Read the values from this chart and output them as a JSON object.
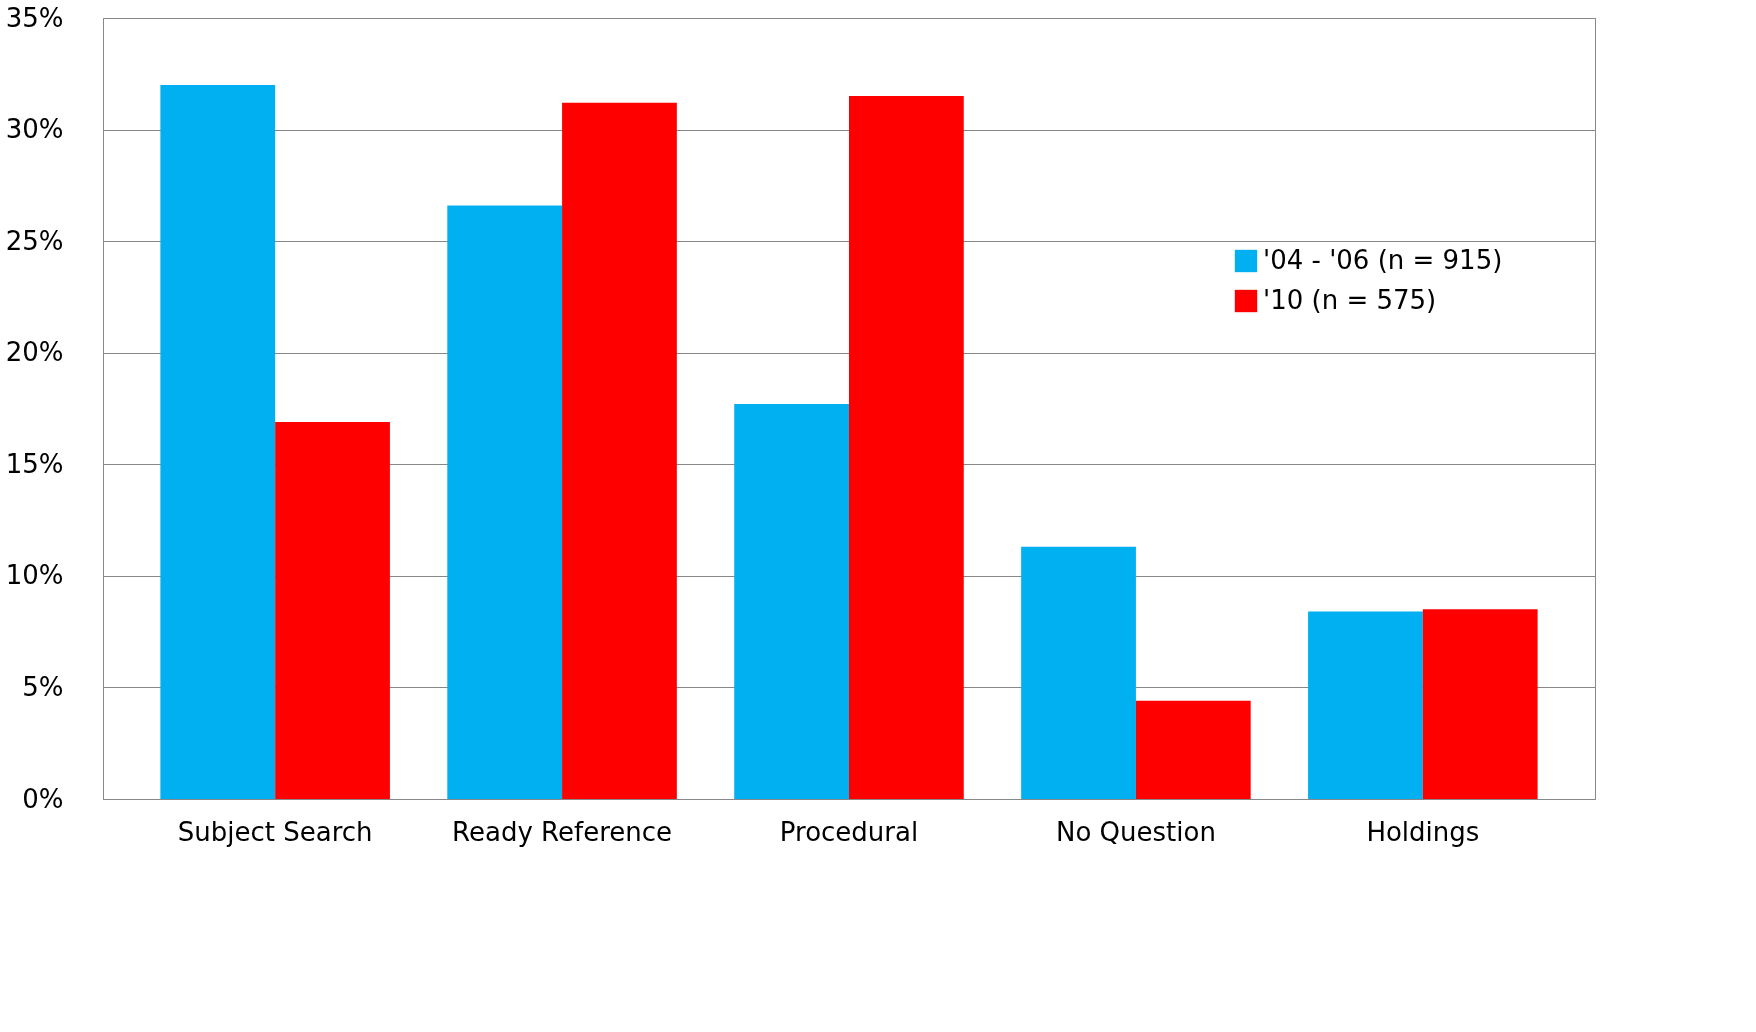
{
  "chart_data": {
    "type": "bar",
    "categories": [
      "Subject Search",
      "Ready Reference",
      "Procedural",
      "No Question",
      "Holdings"
    ],
    "series": [
      {
        "name": "'04 - '06 (n = 915)",
        "color": "#00b0f0",
        "values": [
          32.0,
          26.6,
          17.7,
          11.3,
          8.4
        ]
      },
      {
        "name": "'10 (n = 575)",
        "color": "#ff0000",
        "values": [
          16.9,
          31.2,
          31.5,
          4.4,
          8.5
        ]
      }
    ],
    "ylim": [
      0,
      35
    ],
    "yticks": [
      {
        "value": 0,
        "label": "0%"
      },
      {
        "value": 5,
        "label": "5%"
      },
      {
        "value": 10,
        "label": "10%"
      },
      {
        "value": 15,
        "label": "15%"
      },
      {
        "value": 20,
        "label": "20%"
      },
      {
        "value": 25,
        "label": "25%"
      },
      {
        "value": 30,
        "label": "30%"
      },
      {
        "value": 35,
        "label": "35%"
      }
    ],
    "grid": "y",
    "legend": "right"
  }
}
